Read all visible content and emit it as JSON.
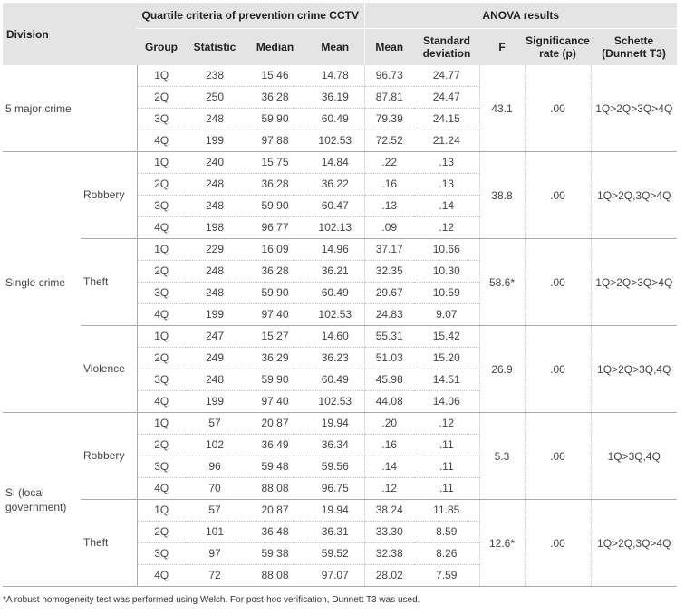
{
  "header": {
    "division": "Division",
    "quartile_title": "Quartile criteria of prevention crime CCTV",
    "anova_title": "ANOVA results",
    "cols": [
      "Group",
      "Statistic",
      "Median",
      "Mean",
      "Mean",
      "Standard deviation",
      "F",
      "Significance rate (p)",
      "Schette (Dunnett T3)"
    ]
  },
  "sections": [
    {
      "label": "5 major crime",
      "subgroups": [
        {
          "label": "",
          "f": "43.1",
          "p": ".00",
          "schette": "1Q>2Q>3Q>4Q",
          "rows": [
            [
              "1Q",
              "238",
              "15.46",
              "14.78",
              "96.73",
              "24.77"
            ],
            [
              "2Q",
              "250",
              "36.28",
              "36.19",
              "87.81",
              "24.47"
            ],
            [
              "3Q",
              "248",
              "59.90",
              "60.49",
              "79.39",
              "24.15"
            ],
            [
              "4Q",
              "199",
              "97.88",
              "102.53",
              "72.52",
              "21.24"
            ]
          ]
        }
      ]
    },
    {
      "label": "Single crime",
      "subgroups": [
        {
          "label": "Robbery",
          "f": "38.8",
          "p": ".00",
          "schette": "1Q>2Q,3Q>4Q",
          "rows": [
            [
              "1Q",
              "240",
              "15.75",
              "14.84",
              ".22",
              ".13"
            ],
            [
              "2Q",
              "248",
              "36.28",
              "36.22",
              ".16",
              ".13"
            ],
            [
              "3Q",
              "248",
              "59.90",
              "60.47",
              ".13",
              ".14"
            ],
            [
              "4Q",
              "198",
              "96.77",
              "102.13",
              ".09",
              ".12"
            ]
          ]
        },
        {
          "label": "Theft",
          "f": "58.6*",
          "p": ".00",
          "schette": "1Q>2Q>3Q>4Q",
          "rows": [
            [
              "1Q",
              "229",
              "16.09",
              "14.96",
              "37.17",
              "10.66"
            ],
            [
              "2Q",
              "248",
              "36.28",
              "36.21",
              "32.35",
              "10.30"
            ],
            [
              "3Q",
              "248",
              "59.90",
              "60.49",
              "29.67",
              "10.59"
            ],
            [
              "4Q",
              "199",
              "97.40",
              "102.53",
              "24.83",
              "9.07"
            ]
          ]
        },
        {
          "label": "Violence",
          "f": "26.9",
          "p": ".00",
          "schette": "1Q>2Q>3Q,4Q",
          "rows": [
            [
              "1Q",
              "247",
              "15.27",
              "14.60",
              "55.31",
              "15.42"
            ],
            [
              "2Q",
              "249",
              "36.29",
              "36.23",
              "51.03",
              "15.20"
            ],
            [
              "3Q",
              "248",
              "59.90",
              "60.49",
              "45.98",
              "14.51"
            ],
            [
              "4Q",
              "199",
              "97.40",
              "102.53",
              "44.08",
              "14.06"
            ]
          ]
        }
      ]
    },
    {
      "label": "Si (local government)",
      "subgroups": [
        {
          "label": "Robbery",
          "f": "5.3",
          "p": ".00",
          "schette": "1Q>3Q,4Q",
          "rows": [
            [
              "1Q",
              "57",
              "20.87",
              "19.94",
              ".20",
              ".12"
            ],
            [
              "2Q",
              "102",
              "36.49",
              "36.34",
              ".16",
              ".11"
            ],
            [
              "3Q",
              "96",
              "59.48",
              "59.56",
              ".14",
              ".11"
            ],
            [
              "4Q",
              "70",
              "88.08",
              "96.75",
              ".12",
              ".11"
            ]
          ]
        },
        {
          "label": "Theft",
          "f": "12.6*",
          "p": ".00",
          "schette": "1Q>2Q,3Q>4Q",
          "rows": [
            [
              "1Q",
              "57",
              "20.87",
              "19.94",
              "38.24",
              "11.85"
            ],
            [
              "2Q",
              "101",
              "36.48",
              "36.31",
              "33.30",
              "8.59"
            ],
            [
              "3Q",
              "97",
              "59.38",
              "59.52",
              "32.38",
              "8.26"
            ],
            [
              "4Q",
              "72",
              "88.08",
              "97.07",
              "28.02",
              "7.59"
            ]
          ]
        }
      ]
    }
  ],
  "footnote": "*A robust homogeneity test was performed using Welch. For post-hoc verification, Dunnett T3 was used."
}
